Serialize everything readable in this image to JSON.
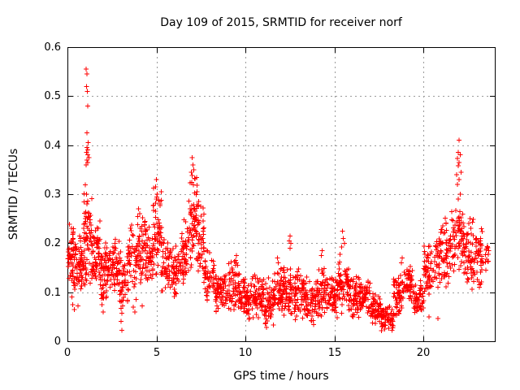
{
  "page": {
    "background_color": "#ffffff"
  },
  "chart_data": {
    "type": "scatter",
    "title": "Day 109 of 2015, SRMTID for receiver norf",
    "xlabel": "GPS time / hours",
    "ylabel": "SRMTID / TECUs",
    "xlim": [
      0,
      24
    ],
    "ylim": [
      0,
      0.6
    ],
    "grid": true,
    "legend": "none",
    "marker": "plus",
    "marker_color": "#ff0000",
    "grid_color": "#9b9b9b",
    "axis_color": "#000000",
    "xticks": [
      {
        "v": 0,
        "label": "0"
      },
      {
        "v": 5,
        "label": "5"
      },
      {
        "v": 10,
        "label": "10"
      },
      {
        "v": 15,
        "label": "15"
      },
      {
        "v": 20,
        "label": "20"
      }
    ],
    "yticks": [
      {
        "v": 0.0,
        "label": "0"
      },
      {
        "v": 0.1,
        "label": "0.1"
      },
      {
        "v": 0.2,
        "label": "0.2"
      },
      {
        "v": 0.3,
        "label": "0.3"
      },
      {
        "v": 0.4,
        "label": "0.4"
      },
      {
        "v": 0.5,
        "label": "0.5"
      },
      {
        "v": 0.6,
        "label": "0.6"
      }
    ],
    "envelope_note": "dense scatter of + markers; bins are [hour_start, hour_end, y_min_TECU, y_max_TECU, approx_point_count] read from the plot",
    "envelope": [
      [
        0.02,
        0.5,
        0.09,
        0.26,
        65
      ],
      [
        0.5,
        0.9,
        0.1,
        0.22,
        50
      ],
      [
        0.9,
        1.4,
        0.11,
        0.33,
        75
      ],
      [
        1.4,
        1.9,
        0.1,
        0.25,
        60
      ],
      [
        1.9,
        2.2,
        0.07,
        0.22,
        40
      ],
      [
        2.2,
        2.6,
        0.09,
        0.2,
        40
      ],
      [
        2.6,
        3.0,
        0.08,
        0.22,
        40
      ],
      [
        3.0,
        3.4,
        0.05,
        0.18,
        35
      ],
      [
        3.4,
        3.9,
        0.09,
        0.25,
        50
      ],
      [
        3.9,
        4.4,
        0.1,
        0.27,
        55
      ],
      [
        4.4,
        4.8,
        0.11,
        0.24,
        45
      ],
      [
        4.8,
        5.3,
        0.12,
        0.33,
        60
      ],
      [
        5.3,
        5.8,
        0.09,
        0.22,
        50
      ],
      [
        5.8,
        6.4,
        0.08,
        0.2,
        55
      ],
      [
        6.4,
        6.8,
        0.1,
        0.26,
        45
      ],
      [
        6.8,
        7.3,
        0.13,
        0.35,
        65
      ],
      [
        7.3,
        7.7,
        0.1,
        0.3,
        45
      ],
      [
        7.7,
        8.3,
        0.07,
        0.19,
        55
      ],
      [
        8.3,
        9.0,
        0.05,
        0.155,
        65
      ],
      [
        9.0,
        9.7,
        0.05,
        0.17,
        65
      ],
      [
        9.7,
        10.3,
        0.04,
        0.135,
        65
      ],
      [
        10.3,
        11.0,
        0.04,
        0.14,
        70
      ],
      [
        11.0,
        11.6,
        0.025,
        0.13,
        65
      ],
      [
        11.6,
        12.1,
        0.04,
        0.16,
        55
      ],
      [
        12.1,
        12.7,
        0.04,
        0.16,
        60
      ],
      [
        12.7,
        13.3,
        0.04,
        0.15,
        60
      ],
      [
        13.3,
        14.0,
        0.03,
        0.135,
        70
      ],
      [
        14.0,
        14.6,
        0.04,
        0.155,
        60
      ],
      [
        14.6,
        15.2,
        0.04,
        0.14,
        60
      ],
      [
        15.2,
        15.8,
        0.05,
        0.18,
        60
      ],
      [
        15.8,
        16.4,
        0.04,
        0.14,
        60
      ],
      [
        16.4,
        17.0,
        0.05,
        0.13,
        60
      ],
      [
        17.0,
        17.6,
        0.03,
        0.1,
        60
      ],
      [
        17.6,
        18.3,
        0.018,
        0.08,
        65
      ],
      [
        18.3,
        18.9,
        0.04,
        0.14,
        60
      ],
      [
        18.9,
        19.4,
        0.07,
        0.17,
        50
      ],
      [
        19.4,
        20.0,
        0.05,
        0.13,
        55
      ],
      [
        20.0,
        20.6,
        0.09,
        0.2,
        55
      ],
      [
        20.6,
        21.2,
        0.1,
        0.25,
        55
      ],
      [
        21.2,
        21.8,
        0.1,
        0.28,
        55
      ],
      [
        21.8,
        22.3,
        0.12,
        0.3,
        50
      ],
      [
        22.3,
        22.9,
        0.1,
        0.25,
        55
      ],
      [
        22.9,
        23.3,
        0.09,
        0.26,
        40
      ],
      [
        23.3,
        23.7,
        0.13,
        0.22,
        15
      ]
    ],
    "outliers": [
      [
        1.05,
        0.555
      ],
      [
        1.1,
        0.545
      ],
      [
        1.07,
        0.52
      ],
      [
        1.12,
        0.51
      ],
      [
        1.15,
        0.48
      ],
      [
        1.1,
        0.425
      ],
      [
        1.17,
        0.405
      ],
      [
        1.1,
        0.395
      ],
      [
        1.13,
        0.39
      ],
      [
        1.08,
        0.385
      ],
      [
        1.15,
        0.38
      ],
      [
        1.2,
        0.375
      ],
      [
        1.1,
        0.37
      ],
      [
        1.14,
        0.365
      ],
      [
        1.06,
        0.36
      ],
      [
        0.25,
        0.09
      ],
      [
        0.3,
        0.075
      ],
      [
        0.38,
        0.065
      ],
      [
        0.6,
        0.072
      ],
      [
        1.9,
        0.095
      ],
      [
        1.95,
        0.075
      ],
      [
        2.0,
        0.06
      ],
      [
        2.95,
        0.095
      ],
      [
        3.0,
        0.08
      ],
      [
        3.05,
        0.057
      ],
      [
        3.0,
        0.041
      ],
      [
        3.05,
        0.022
      ],
      [
        3.7,
        0.07
      ],
      [
        3.78,
        0.06
      ],
      [
        3.85,
        0.085
      ],
      [
        4.2,
        0.072
      ],
      [
        4.0,
        0.27
      ],
      [
        4.05,
        0.26
      ],
      [
        4.95,
        0.315
      ],
      [
        5.0,
        0.33
      ],
      [
        5.05,
        0.3
      ],
      [
        5.0,
        0.29
      ],
      [
        7.0,
        0.375
      ],
      [
        7.05,
        0.36
      ],
      [
        7.1,
        0.35
      ],
      [
        6.95,
        0.345
      ],
      [
        7.0,
        0.338
      ],
      [
        7.15,
        0.332
      ],
      [
        9.5,
        0.175
      ],
      [
        9.45,
        0.165
      ],
      [
        11.8,
        0.17
      ],
      [
        11.85,
        0.16
      ],
      [
        12.5,
        0.215
      ],
      [
        12.45,
        0.205
      ],
      [
        12.55,
        0.2
      ],
      [
        12.5,
        0.19
      ],
      [
        14.3,
        0.185
      ],
      [
        14.25,
        0.175
      ],
      [
        15.45,
        0.225
      ],
      [
        15.5,
        0.21
      ],
      [
        15.55,
        0.2
      ],
      [
        15.4,
        0.192
      ],
      [
        18.8,
        0.17
      ],
      [
        18.75,
        0.16
      ],
      [
        20.8,
        0.046
      ],
      [
        20.3,
        0.05
      ],
      [
        22.0,
        0.41
      ],
      [
        21.95,
        0.385
      ],
      [
        22.05,
        0.38
      ],
      [
        21.9,
        0.373
      ],
      [
        22.0,
        0.365
      ],
      [
        21.95,
        0.358
      ],
      [
        22.1,
        0.345
      ],
      [
        21.85,
        0.34
      ],
      [
        22.0,
        0.33
      ],
      [
        21.9,
        0.32
      ],
      [
        22.05,
        0.3
      ],
      [
        21.95,
        0.29
      ],
      [
        22.6,
        0.25
      ],
      [
        22.55,
        0.24
      ],
      [
        22.65,
        0.23
      ],
      [
        22.5,
        0.22
      ]
    ]
  }
}
